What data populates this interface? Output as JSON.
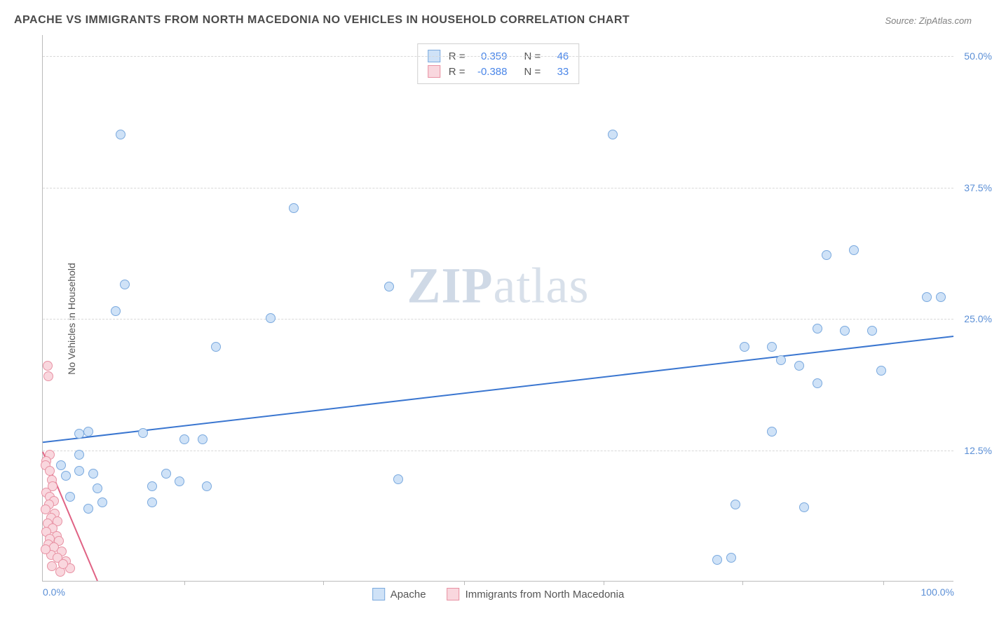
{
  "title": "APACHE VS IMMIGRANTS FROM NORTH MACEDONIA NO VEHICLES IN HOUSEHOLD CORRELATION CHART",
  "source": "Source: ZipAtlas.com",
  "y_axis_label": "No Vehicles in Household",
  "watermark": {
    "bold": "ZIP",
    "light": "atlas"
  },
  "chart": {
    "type": "scatter",
    "xlim": [
      0,
      100
    ],
    "ylim": [
      0,
      52
    ],
    "y_ticks": [
      {
        "v": 12.5,
        "label": "12.5%"
      },
      {
        "v": 25.0,
        "label": "25.0%"
      },
      {
        "v": 37.5,
        "label": "37.5%"
      },
      {
        "v": 50.0,
        "label": "50.0%"
      }
    ],
    "x_ticks_minor": [
      15.5,
      30.8,
      46.2,
      61.5,
      76.8,
      92.2
    ],
    "x_labels": [
      {
        "v": 0,
        "label": "0.0%"
      },
      {
        "v": 100,
        "label": "100.0%"
      }
    ],
    "background_color": "#ffffff",
    "grid_color": "#d8d8d8",
    "tick_color": "#5b8fd6",
    "marker_radius": 7,
    "series": [
      {
        "name": "Apache",
        "fill": "#cfe2f7",
        "stroke": "#7aa9de",
        "r": 0.359,
        "n": 46,
        "trend": {
          "x1": 0,
          "y1": 13.2,
          "x2": 100,
          "y2": 23.3,
          "color": "#3a76d0",
          "width": 2
        },
        "points": [
          [
            8.5,
            42.5
          ],
          [
            62.5,
            42.5
          ],
          [
            27.5,
            35.5
          ],
          [
            9,
            28.2
          ],
          [
            8,
            25.7
          ],
          [
            25,
            25
          ],
          [
            19,
            22.3
          ],
          [
            4,
            14
          ],
          [
            5,
            14.2
          ],
          [
            11,
            14.1
          ],
          [
            15.5,
            13.5
          ],
          [
            17.5,
            13.5
          ],
          [
            4,
            10.5
          ],
          [
            5.5,
            10.2
          ],
          [
            6,
            8.8
          ],
          [
            12,
            9
          ],
          [
            15,
            9.5
          ],
          [
            18,
            9
          ],
          [
            12,
            7.5
          ],
          [
            5,
            6.9
          ],
          [
            6.5,
            7.5
          ],
          [
            3,
            8
          ],
          [
            2.5,
            10
          ],
          [
            2,
            11
          ],
          [
            4,
            12
          ],
          [
            38,
            28
          ],
          [
            39,
            9.7
          ],
          [
            77,
            22.3
          ],
          [
            74,
            2
          ],
          [
            75.5,
            2.2
          ],
          [
            76,
            7.3
          ],
          [
            80,
            22.3
          ],
          [
            81,
            21
          ],
          [
            80,
            14.2
          ],
          [
            83,
            20.5
          ],
          [
            83.5,
            7
          ],
          [
            85,
            18.8
          ],
          [
            86,
            31
          ],
          [
            88,
            23.8
          ],
          [
            89,
            31.5
          ],
          [
            91,
            23.8
          ],
          [
            92,
            20
          ],
          [
            97,
            27
          ],
          [
            98.5,
            27
          ],
          [
            85,
            24
          ],
          [
            13.5,
            10.2
          ]
        ]
      },
      {
        "name": "Immigrants from North Macedonia",
        "fill": "#f9d7de",
        "stroke": "#e891a3",
        "r": -0.388,
        "n": 33,
        "trend": {
          "x1": 0,
          "y1": 12.3,
          "x2": 6,
          "y2": 0,
          "color": "#e06284",
          "width": 2
        },
        "points": [
          [
            0.5,
            20.5
          ],
          [
            0.6,
            19.5
          ],
          [
            0.8,
            12
          ],
          [
            0.4,
            11.4
          ],
          [
            0.3,
            11
          ],
          [
            0.8,
            10.5
          ],
          [
            1,
            9.6
          ],
          [
            1.1,
            9
          ],
          [
            0.4,
            8.4
          ],
          [
            0.8,
            8
          ],
          [
            1.2,
            7.6
          ],
          [
            0.7,
            7.3
          ],
          [
            0.3,
            6.8
          ],
          [
            1.3,
            6.4
          ],
          [
            0.9,
            6
          ],
          [
            1.6,
            5.7
          ],
          [
            0.5,
            5.5
          ],
          [
            1.1,
            5
          ],
          [
            0.4,
            4.7
          ],
          [
            1.5,
            4.3
          ],
          [
            0.8,
            4
          ],
          [
            1.8,
            3.8
          ],
          [
            0.6,
            3.5
          ],
          [
            1.2,
            3.2
          ],
          [
            2.1,
            2.8
          ],
          [
            0.9,
            2.5
          ],
          [
            1.6,
            2.2
          ],
          [
            2.5,
            1.9
          ],
          [
            1,
            1.4
          ],
          [
            3,
            1.2
          ],
          [
            1.9,
            0.9
          ],
          [
            2.2,
            1.6
          ],
          [
            0.3,
            3
          ]
        ]
      }
    ]
  },
  "stats_labels": {
    "r": "R =",
    "n": "N ="
  }
}
